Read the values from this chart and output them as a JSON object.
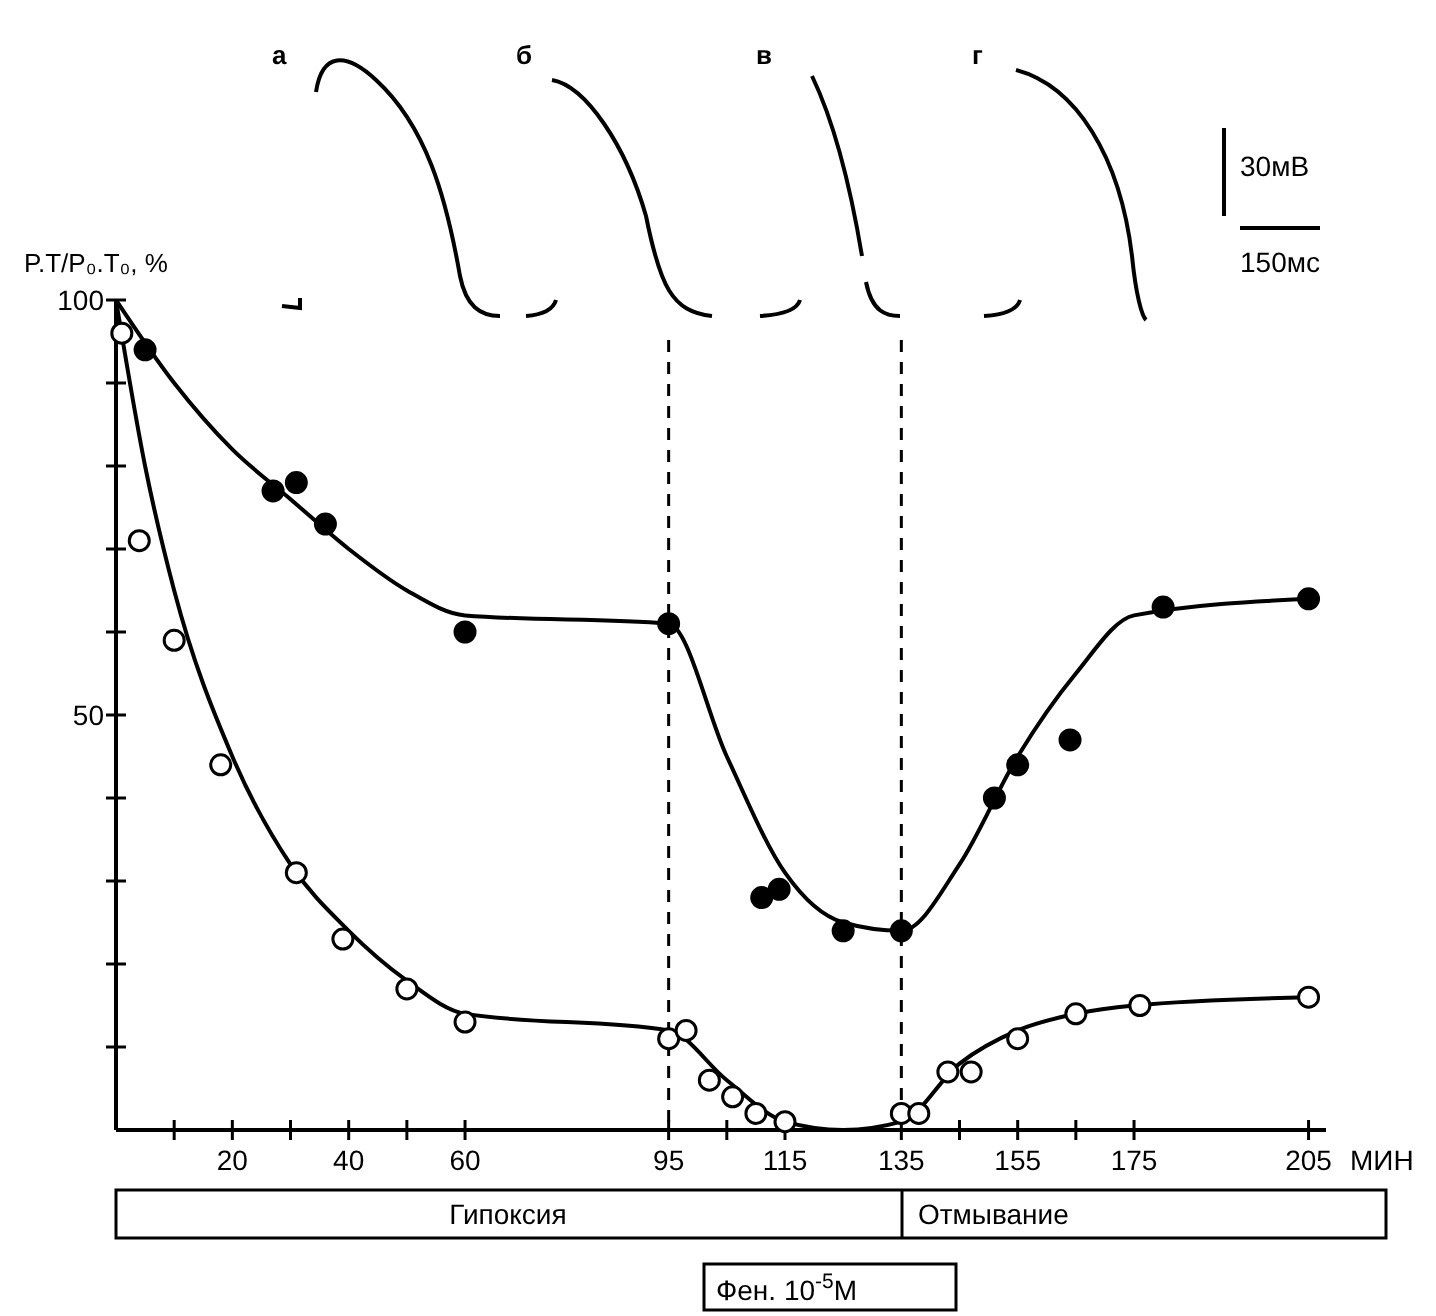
{
  "chart_data": {
    "type": "scatter",
    "ylabel": "P.T/P₀.T₀, %",
    "xlabel": "МИН",
    "xlim": [
      0,
      208
    ],
    "ylim": [
      0,
      100
    ],
    "xticks": [
      {
        "value": 10,
        "label": null
      },
      20,
      {
        "value": 30,
        "label": null
      },
      40,
      {
        "value": 50,
        "label": null
      },
      60,
      95,
      {
        "value": 105,
        "label": null
      },
      115,
      135,
      {
        "value": 145,
        "label": null
      },
      155,
      {
        "value": 165,
        "label": null
      },
      175,
      205
    ],
    "yticks": [
      {
        "value": 10,
        "label": null
      },
      {
        "value": 20,
        "label": null
      },
      {
        "value": 30,
        "label": null
      },
      {
        "value": 40,
        "label": null
      },
      50,
      {
        "value": 60,
        "label": null
      },
      {
        "value": 70,
        "label": null
      },
      {
        "value": 80,
        "label": null
      },
      {
        "value": 90,
        "label": null
      },
      100
    ],
    "grid": false,
    "series": [
      {
        "type": "line",
        "color": "#000000",
        "marker": "none",
        "x": [
          0,
          10,
          20,
          30,
          40,
          50,
          60,
          95,
          105,
          115,
          125,
          135,
          145,
          155,
          165,
          175,
          205
        ],
        "values": [
          100,
          90,
          82,
          76,
          70,
          65,
          62,
          61,
          45,
          31,
          25,
          24,
          32,
          45,
          55,
          62,
          64
        ]
      },
      {
        "type": "line",
        "color": "#000000",
        "marker": "none",
        "x": [
          0,
          5,
          10,
          20,
          30,
          40,
          50,
          60,
          95,
          105,
          115,
          125,
          135,
          145,
          155,
          165,
          175,
          205
        ],
        "values": [
          100,
          80,
          65,
          45,
          32,
          24,
          18,
          14,
          12,
          6,
          1,
          0,
          1,
          8,
          12,
          14,
          15,
          16
        ]
      },
      {
        "color": "#000000",
        "marker": "circle",
        "x": [
          5,
          27,
          31,
          36,
          60,
          95,
          111,
          114,
          125,
          135,
          151,
          155,
          164,
          180,
          205
        ],
        "values": [
          94,
          77,
          78,
          73,
          60,
          61,
          28,
          29,
          24,
          24,
          40,
          44,
          47,
          63,
          64
        ]
      },
      {
        "color": "#ffffff",
        "marker": "circle",
        "x": [
          1,
          4,
          10,
          18,
          31,
          39,
          50,
          60,
          95,
          98,
          102,
          106,
          110,
          115,
          135,
          138,
          143,
          147,
          155,
          165,
          176,
          205
        ],
        "values": [
          96,
          71,
          59,
          44,
          31,
          23,
          17,
          13,
          11,
          12,
          6,
          4,
          2,
          1,
          2,
          2,
          7,
          7,
          11,
          14,
          15,
          16
        ]
      }
    ],
    "ref_lines": [
      {
        "axis": "x",
        "value": 95,
        "line_style": "dashed"
      },
      {
        "axis": "x",
        "value": 135,
        "line_style": "dashed"
      }
    ],
    "annotations": [
      "а",
      "б",
      "в",
      "г",
      "30мВ",
      "150мс",
      "Гипоксия",
      "Отмывание",
      "Фен. 10$^{-5}$М"
    ]
  }
}
